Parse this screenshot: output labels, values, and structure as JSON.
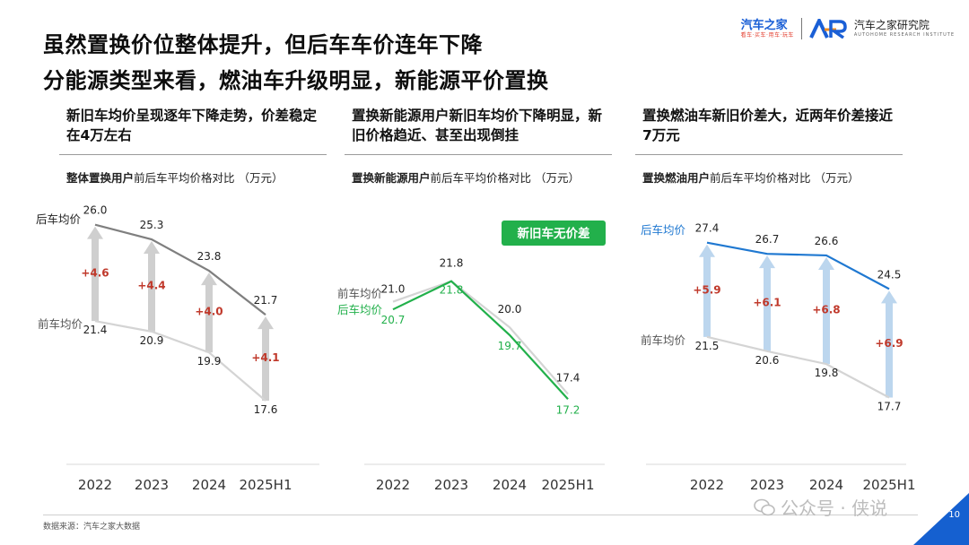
{
  "titles": [
    "虽然置换价位整体提升，但后车车价连年下降",
    "分能源类型来看，燃油车升级明显，新能源平价置换"
  ],
  "logo": {
    "brand": "汽车之家",
    "brand_sub": "看车·买车·用车·玩车",
    "institute": "汽车之家研究院",
    "institute_en": "AUTOHOME RESEARCH INSTITUTE"
  },
  "panels": [
    {
      "heading": "新旧车均价呈现逐年下降走势，价差稳定在4万左右",
      "subtitle_highlight": "整体置换用户",
      "subtitle_rest": "前后车平均价格对比 （万元）"
    },
    {
      "heading": "置换新能源用户新旧车均价下降明显，新旧价格趋近、甚至出现倒挂",
      "subtitle_highlight": "置换新能源用户",
      "subtitle_rest": "前后车平均价格对比 （万元）"
    },
    {
      "heading": "置换燃油车新旧价差大，近两年价差接近7万元",
      "subtitle_highlight": "置换燃油用户",
      "subtitle_rest": "前后车平均价格对比 （万元）"
    }
  ],
  "footer": {
    "source": "数据来源：汽车之家大数据",
    "watermark": "公众号 · 侠说",
    "page_number": "10"
  },
  "chart_data": [
    {
      "type": "line",
      "categories": [
        "2022",
        "2023",
        "2024",
        "2025H1"
      ],
      "series": [
        {
          "name": "后车均价",
          "values": [
            26.0,
            25.3,
            23.8,
            21.7
          ],
          "color": "#7f7f7f"
        },
        {
          "name": "前车均价",
          "values": [
            21.4,
            20.9,
            19.9,
            17.6
          ],
          "color": "#d4d4d4"
        }
      ],
      "differences": [
        "+4.6",
        "+4.4",
        "+4.0",
        "+4.1"
      ],
      "arrow_color": "#cfcfcf",
      "highlight_color": "#000000"
    },
    {
      "type": "line",
      "categories": [
        "2022",
        "2023",
        "2024",
        "2025H1"
      ],
      "series": [
        {
          "name": "前车均价",
          "values": [
            21.0,
            21.8,
            20.0,
            17.4
          ],
          "color": "#d4d4d4"
        },
        {
          "name": "后车均价",
          "values": [
            20.7,
            21.8,
            19.7,
            17.2
          ],
          "color": "#22b04b"
        }
      ],
      "badge": "新旧车无价差",
      "highlight_color": "#22b04b"
    },
    {
      "type": "line",
      "categories": [
        "2022",
        "2023",
        "2024",
        "2025H1"
      ],
      "series": [
        {
          "name": "后车均价",
          "values": [
            27.4,
            26.7,
            26.6,
            24.5
          ],
          "color": "#1f78d1"
        },
        {
          "name": "前车均价",
          "values": [
            21.5,
            20.6,
            19.8,
            17.7
          ],
          "color": "#d4d4d4"
        }
      ],
      "differences": [
        "+5.9",
        "+6.1",
        "+6.8",
        "+6.9"
      ],
      "arrow_color": "#bcd6ee",
      "highlight_color": "#1f78d1"
    }
  ]
}
